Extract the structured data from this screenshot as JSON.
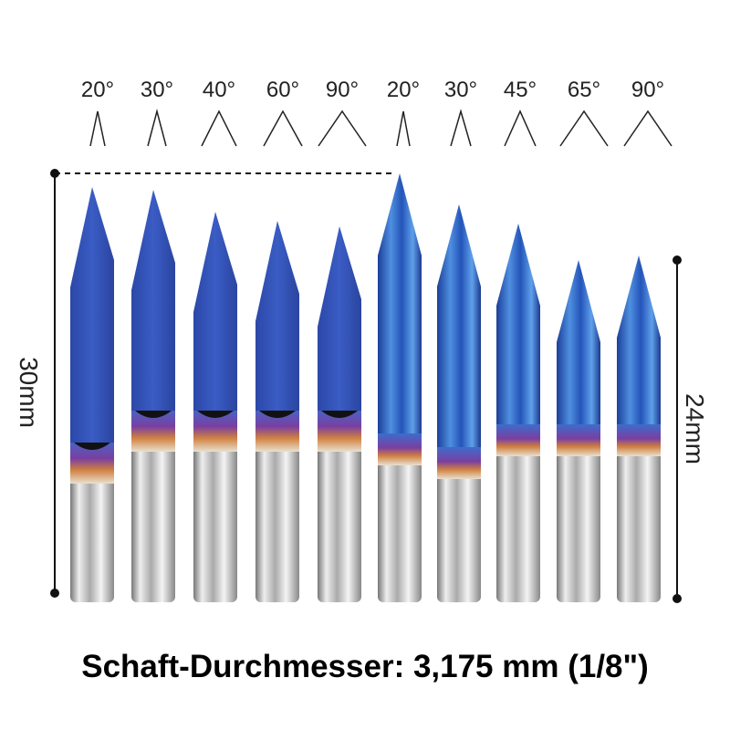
{
  "angle_labels": [
    "20°",
    "30°",
    "40°",
    "60°",
    "90°",
    "20°",
    "30°",
    "45°",
    "65°",
    "90°"
  ],
  "dimensions": {
    "total_length": "30mm",
    "cutting_length": "24mm"
  },
  "caption": "Schaft-Durchmesser: 3,175 mm (1/8\")"
}
